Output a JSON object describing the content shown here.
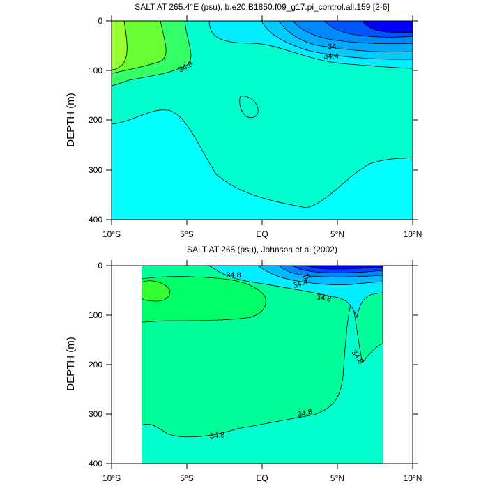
{
  "chart_data": [
    {
      "type": "contour",
      "title": "SALT AT 265.4°E (psu), b.e20.B1850.f09_g17.pi_control.all.159 [2-6]",
      "ylabel": "DEPTH (m)",
      "xlabel": "",
      "xlim": [
        -10,
        10
      ],
      "ylim": [
        400,
        0
      ],
      "x_ticks": [
        {
          "value": -10,
          "label": "10°S"
        },
        {
          "value": -5,
          "label": "5°S"
        },
        {
          "value": 0,
          "label": "EQ"
        },
        {
          "value": 5,
          "label": "5°N"
        },
        {
          "value": 10,
          "label": "10°N"
        }
      ],
      "y_ticks": [
        0,
        100,
        200,
        300,
        400
      ],
      "contour_labels": [
        {
          "text": "34.8",
          "x": -5.0,
          "y": 92
        },
        {
          "text": "34",
          "x": 4.3,
          "y": 52
        },
        {
          "text": "34.4",
          "x": 4.4,
          "y": 68
        }
      ],
      "colors": {
        "deep": "#00ffff",
        "mid": "#00ffcc",
        "salty": "#33ff66",
        "saltiest": "#99ff33",
        "fresh": "#0000ff"
      }
    },
    {
      "type": "contour",
      "title": "SALT AT 265 (psu), Johnson et al (2002)",
      "ylabel": "DEPTH (m)",
      "xlabel": "",
      "xlim": [
        -10,
        10
      ],
      "ylim": [
        400,
        0
      ],
      "data_xrange": [
        -8,
        8
      ],
      "x_ticks": [
        {
          "value": -10,
          "label": "10°S"
        },
        {
          "value": -5,
          "label": "5°S"
        },
        {
          "value": 0,
          "label": "EQ"
        },
        {
          "value": 5,
          "label": "5°N"
        },
        {
          "value": 10,
          "label": "10°N"
        }
      ],
      "y_ticks": [
        0,
        100,
        200,
        300,
        400
      ],
      "contour_labels": [
        {
          "text": "34.8",
          "x": -2.0,
          "y": 22
        },
        {
          "text": "34",
          "x": 3.0,
          "y": 27
        },
        {
          "text": "34.4",
          "x": 2.5,
          "y": 38
        },
        {
          "text": "34.8",
          "x": 4.0,
          "y": 67
        },
        {
          "text": "34.8",
          "x": 6.0,
          "y": 182
        },
        {
          "text": "34.8",
          "x": 3.0,
          "y": 296
        },
        {
          "text": "34.8",
          "x": -3.0,
          "y": 343
        }
      ],
      "colors": {
        "deep": "#00ffcc",
        "mid": "#00ff99",
        "salty": "#00ff66",
        "saltiest": "#33ff33",
        "fresh": "#0000ff"
      }
    }
  ]
}
